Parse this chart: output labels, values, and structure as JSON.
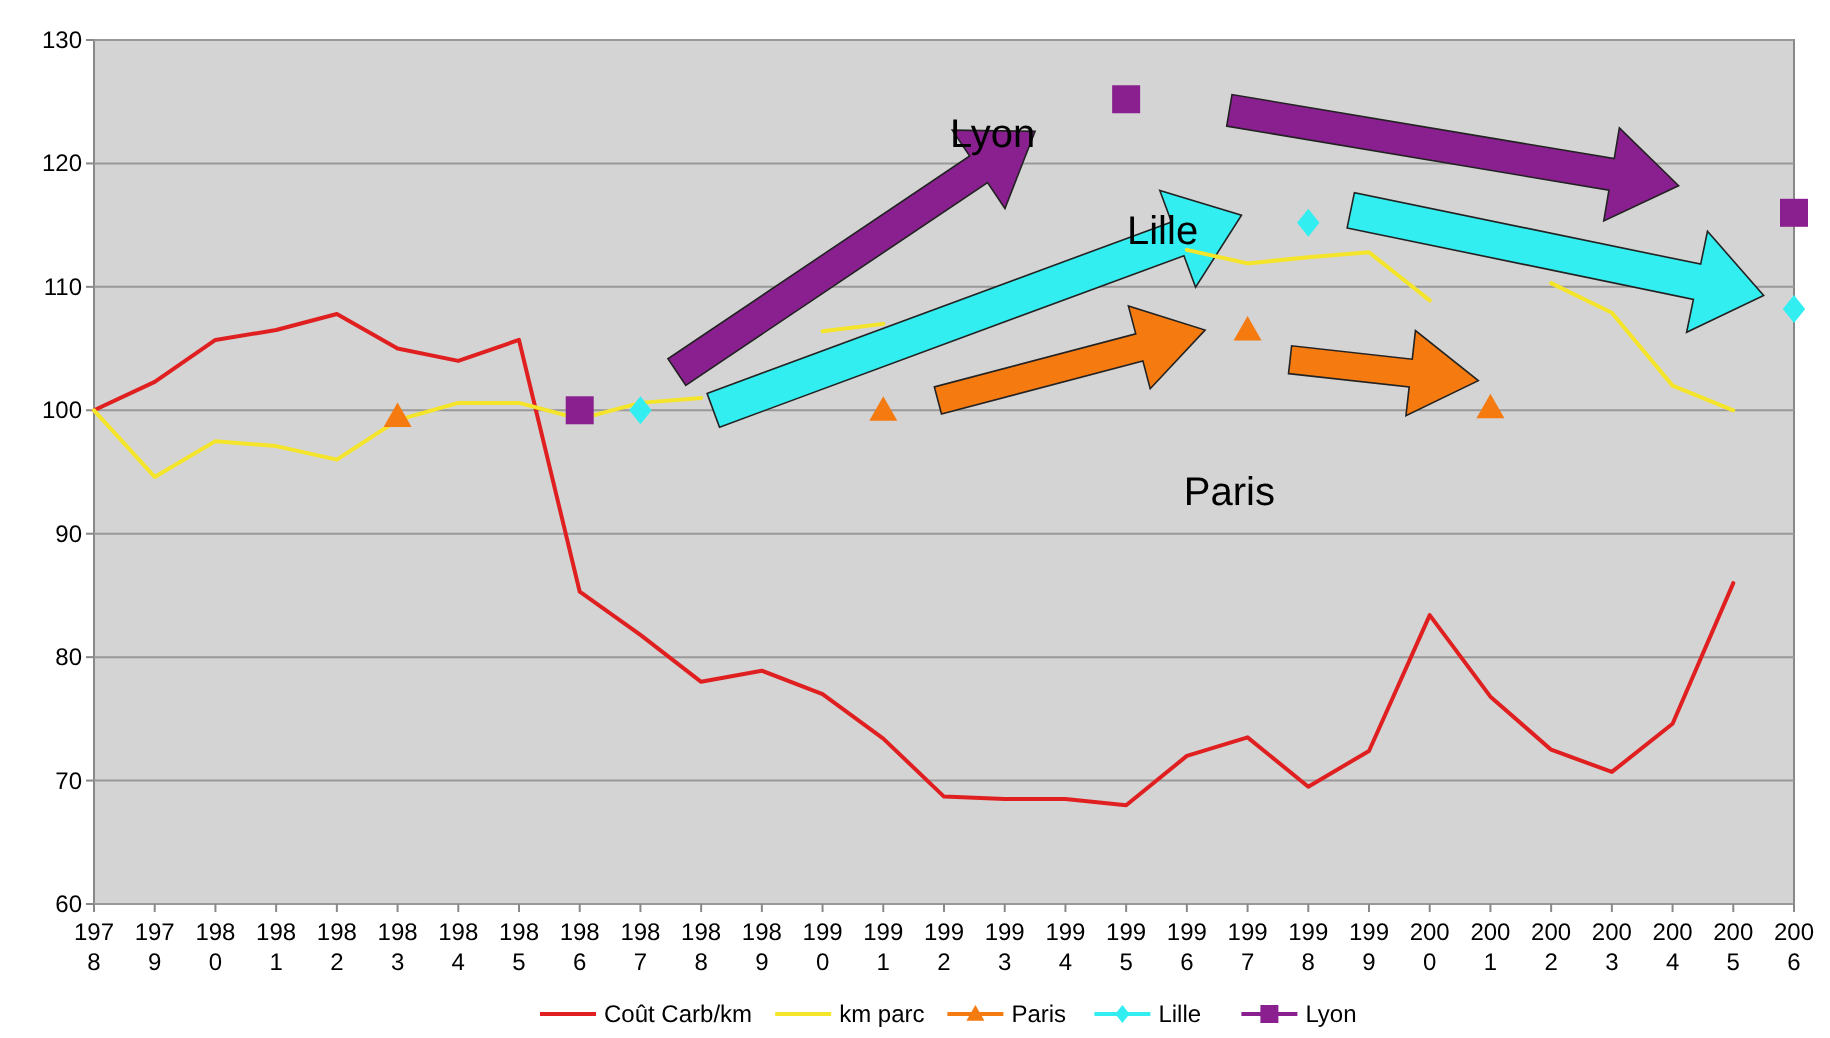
{
  "chart_data": {
    "type": "line",
    "categories": [
      "1978",
      "1979",
      "1980",
      "1981",
      "1982",
      "1983",
      "1984",
      "1985",
      "1986",
      "1987",
      "1988",
      "1989",
      "1990",
      "1991",
      "1992",
      "1993",
      "1994",
      "1995",
      "1996",
      "1997",
      "1998",
      "1999",
      "2000",
      "2001",
      "2002",
      "2003",
      "2004",
      "2005",
      "2006"
    ],
    "series": [
      {
        "name": "Coût Carb/km",
        "color": "#e02020",
        "marker": "none",
        "values": [
          100,
          102.3,
          105.7,
          106.5,
          107.8,
          105,
          104,
          105.7,
          85.3,
          81.8,
          78,
          78.9,
          77,
          73.4,
          68.7,
          68.5,
          68.5,
          68,
          72,
          73.5,
          69.5,
          72.4,
          83.4,
          76.8,
          72.5,
          70.7,
          74.6,
          86,
          null
        ]
      },
      {
        "name": "km parc",
        "color": "#f5e52a",
        "marker": "none",
        "values": [
          100,
          94.6,
          97.5,
          97.1,
          96,
          99.2,
          100.6,
          100.6,
          99.3,
          100.6,
          101,
          null,
          106.4,
          107,
          null,
          null,
          null,
          null,
          113,
          111.9,
          112.4,
          112.8,
          108.9,
          null,
          110.3,
          107.9,
          102,
          100,
          null
        ]
      },
      {
        "name": "Paris",
        "color": "#f57a10",
        "type": "scatter",
        "marker": "triangle",
        "values": [
          null,
          null,
          null,
          null,
          null,
          99.5,
          null,
          null,
          null,
          null,
          null,
          null,
          null,
          100,
          null,
          null,
          null,
          null,
          null,
          106.5,
          null,
          null,
          null,
          100.2,
          null,
          null,
          null,
          null,
          null
        ]
      },
      {
        "name": "Lille",
        "color": "#33eef0",
        "type": "scatter",
        "marker": "diamond",
        "values": [
          null,
          null,
          null,
          null,
          null,
          null,
          null,
          null,
          null,
          100,
          null,
          null,
          null,
          null,
          null,
          null,
          null,
          null,
          null,
          null,
          115.2,
          null,
          null,
          null,
          null,
          null,
          null,
          null,
          108.2
        ]
      },
      {
        "name": "Lyon",
        "color": "#8a2090",
        "type": "scatter",
        "marker": "square",
        "values": [
          null,
          null,
          null,
          null,
          null,
          null,
          null,
          null,
          100,
          null,
          null,
          null,
          null,
          null,
          null,
          null,
          null,
          125.2,
          null,
          null,
          null,
          null,
          null,
          null,
          null,
          null,
          null,
          null,
          116
        ]
      }
    ],
    "annotations": [
      "Lyon",
      "Lille",
      "Paris"
    ],
    "ylim": [
      60,
      130
    ],
    "yticks": [
      60,
      70,
      80,
      90,
      100,
      110,
      120,
      130
    ],
    "grid": "y",
    "legend": "bottom"
  }
}
